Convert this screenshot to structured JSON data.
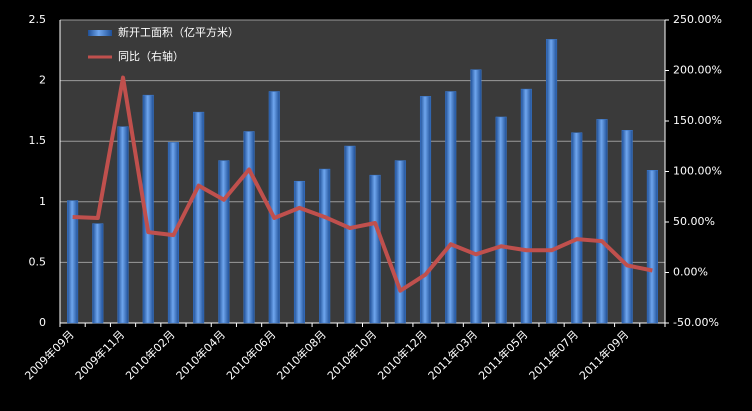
{
  "chart_data": {
    "type": "bar-line",
    "categories": [
      "2009年09月",
      null,
      "2009年11月",
      null,
      "2010年02月",
      null,
      "2010年04月",
      null,
      "2010年06月",
      null,
      "2010年08月",
      null,
      "2010年10月",
      null,
      "2010年12月",
      null,
      "2011年03月",
      null,
      "2011年05月",
      null,
      "2011年07月",
      null,
      "2011年09月",
      null
    ],
    "series": [
      {
        "name": "新开工面积（亿平方米）",
        "color": "#3d7bd0",
        "values": [
          1.01,
          0.82,
          1.62,
          1.88,
          1.49,
          1.74,
          1.34,
          1.58,
          1.91,
          1.17,
          1.27,
          1.46,
          1.22,
          1.34,
          1.87,
          1.91,
          2.09,
          1.7,
          1.93,
          2.34,
          1.57,
          1.68,
          1.59,
          1.26
        ]
      },
      {
        "name": "同比（右轴）",
        "color": "#c0504d",
        "axis": "y2",
        "values": [
          55,
          54,
          193,
          40,
          37,
          86,
          72,
          102,
          54,
          64,
          55,
          44,
          49,
          -18,
          -2,
          28,
          18,
          26,
          22,
          22,
          33,
          31,
          7,
          2
        ]
      }
    ],
    "ylim": [
      0,
      2.5
    ],
    "yticks": [
      0,
      0.5,
      1,
      1.5,
      2,
      2.5
    ],
    "y2lim": [
      -50,
      250
    ],
    "y2ticks": [
      {
        "value": -50,
        "label": "-50.00%"
      },
      {
        "value": 0,
        "label": "0.00%"
      },
      {
        "value": 50,
        "label": "50.00%"
      },
      {
        "value": 100,
        "label": "100.00%"
      },
      {
        "value": 150,
        "label": "150.00%"
      },
      {
        "value": 200,
        "label": "200.00%"
      },
      {
        "value": 250,
        "label": "250.00%"
      }
    ],
    "grid": true,
    "legend": "top-left"
  }
}
